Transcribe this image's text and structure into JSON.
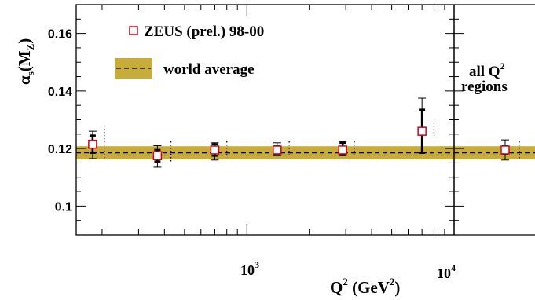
{
  "chart_data": {
    "type": "scatter",
    "x_scale": "log",
    "xlim": [
      150,
      10000
    ],
    "ylim": [
      0.09,
      0.17
    ],
    "y_ticks": [
      "0.1",
      "0.12",
      "0.14",
      "0.16"
    ],
    "y_tick_values": [
      0.1,
      0.12,
      0.14,
      0.16
    ],
    "x_tick_labels": [
      "10",
      "3",
      "10",
      "4"
    ],
    "xlabel": {
      "main": "Q",
      "sup": "2",
      "unit_open": " (GeV",
      "unit_sup": "2",
      "unit_close": ")"
    },
    "ylabel": {
      "alpha": "α",
      "sub_s": "s",
      "paren_open": "(M",
      "sub_z": "Z",
      "paren_close": ")"
    },
    "legend": {
      "position": "top-left",
      "zeus": "ZEUS (prel.) 98-00",
      "world": "world average"
    },
    "world_average": {
      "value": 0.1185,
      "band_low": 0.1162,
      "band_high": 0.1208
    },
    "series": [
      {
        "name": "ZEUS (prel.) 98-00",
        "points": [
          {
            "x": 180,
            "y": 0.1215,
            "stat_lo": 0.1185,
            "stat_hi": 0.1245,
            "tot_lo": 0.1165,
            "tot_hi": 0.126,
            "syst_x": 205,
            "syst_lo": 0.1165,
            "syst_hi": 0.128
          },
          {
            "x": 370,
            "y": 0.1175,
            "stat_lo": 0.1155,
            "stat_hi": 0.1195,
            "tot_lo": 0.1135,
            "tot_hi": 0.121,
            "syst_x": 430,
            "syst_lo": 0.115,
            "syst_hi": 0.1225
          },
          {
            "x": 700,
            "y": 0.1195,
            "stat_lo": 0.1175,
            "stat_hi": 0.1215,
            "tot_lo": 0.116,
            "tot_hi": 0.122,
            "syst_x": 800,
            "syst_lo": 0.117,
            "syst_hi": 0.1225
          },
          {
            "x": 1400,
            "y": 0.1195,
            "stat_lo": 0.118,
            "stat_hi": 0.121,
            "tot_lo": 0.1175,
            "tot_hi": 0.122,
            "syst_x": 1600,
            "syst_lo": 0.118,
            "syst_hi": 0.1225
          },
          {
            "x": 2900,
            "y": 0.1195,
            "stat_lo": 0.118,
            "stat_hi": 0.122,
            "tot_lo": 0.1175,
            "tot_hi": 0.1225,
            "syst_x": 3300,
            "syst_lo": 0.118,
            "syst_hi": 0.1225
          },
          {
            "x": 7000,
            "y": 0.126,
            "stat_lo": 0.1185,
            "stat_hi": 0.1335,
            "tot_lo": 0.1185,
            "tot_hi": 0.1375,
            "syst_x": 8000,
            "syst_lo": 0.1245,
            "syst_hi": 0.129
          }
        ]
      }
    ],
    "combined_panel": {
      "label_line1": "all Q",
      "label_sup": "2",
      "label_line2": "regions",
      "point": {
        "y": 0.1195,
        "stat_lo": 0.118,
        "stat_hi": 0.121,
        "tot_lo": 0.116,
        "tot_hi": 0.123,
        "syst_lo": 0.1165,
        "syst_hi": 0.1225
      }
    }
  }
}
